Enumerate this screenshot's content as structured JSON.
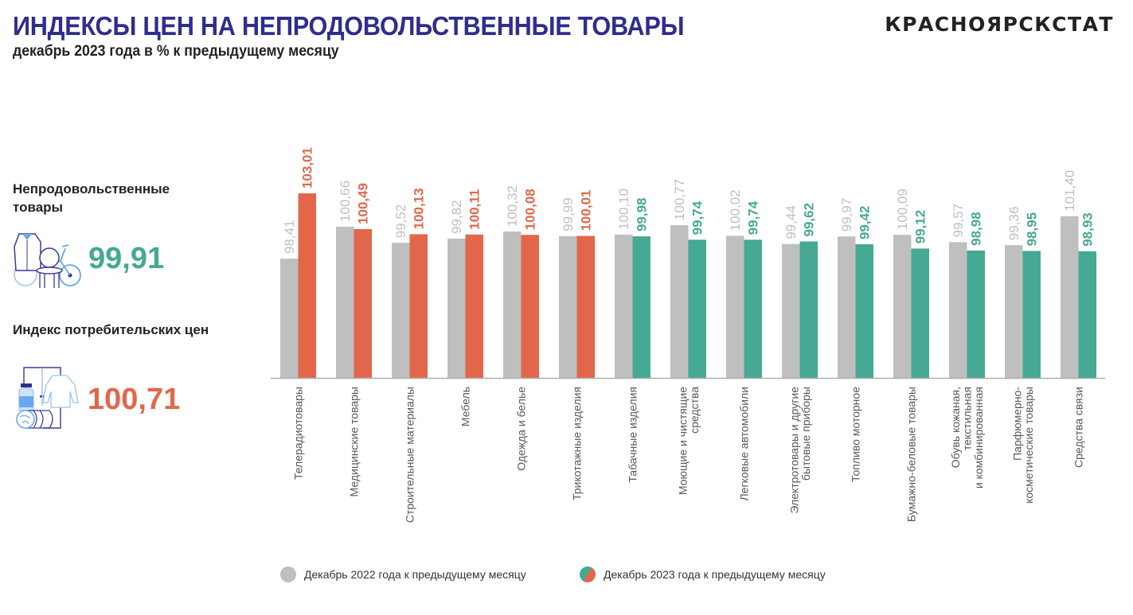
{
  "header": {
    "title": "ИНДЕКСЫ ЦЕН НА НЕПРОДОВОЛЬСТВЕННЫЕ ТОВАРЫ",
    "subtitle": "декабрь 2023 года в % к предыдущему месяцу",
    "brand": "КРАСНОЯРСКСТАТ"
  },
  "summary": [
    {
      "label": "Непродовольственные товары",
      "value": "99,91",
      "color": "#45a993",
      "icon": "goods-icon"
    },
    {
      "label": "Индекс потребительских цен",
      "value": "100,71",
      "color": "#e2674a",
      "icon": "consumer-basket-icon"
    }
  ],
  "colors": {
    "prev_year": "#bfbfbf",
    "above_100": "#e2674a",
    "below_100": "#45a993",
    "axis": "#b0b0b0",
    "category_text": "#595959"
  },
  "chart_data": {
    "type": "bar",
    "title": "ИНДЕКСЫ ЦЕН НА НЕПРОДОВОЛЬСТВЕННЫЕ ТОВАРЫ",
    "subtitle": "декабрь 2023 года в % к предыдущему месяцу",
    "xlabel": "",
    "ylabel": "",
    "ylim": [
      90,
      104
    ],
    "grid": false,
    "legend_position": "bottom",
    "categories": [
      [
        "Телерадиотовары"
      ],
      [
        "Медицинские товары"
      ],
      [
        "Строительные материалы"
      ],
      [
        "Мебель"
      ],
      [
        "Одежда и белье"
      ],
      [
        "Трикотажные изделия"
      ],
      [
        "Табачные изделия"
      ],
      [
        "Моющие и чистящие",
        "средства"
      ],
      [
        "Легковые автомобили"
      ],
      [
        "Электротовары и другие",
        "бытовые приборы"
      ],
      [
        "Топливо моторное"
      ],
      [
        "Бумажно-беловые товары"
      ],
      [
        "Обувь кожаная,",
        "текстильная",
        "и комбинированная"
      ],
      [
        "Парфюмерно-",
        "косметические товары"
      ],
      [
        "Средства связи"
      ]
    ],
    "series": [
      {
        "name": "Декабрь 2022 года к предыдущему месяцу",
        "values": [
          98.41,
          100.66,
          99.52,
          99.82,
          100.32,
          99.99,
          100.1,
          100.77,
          100.02,
          99.44,
          99.97,
          100.09,
          99.57,
          99.36,
          101.4
        ],
        "labels": [
          "98,41",
          "100,66",
          "99,52",
          "99,82",
          "100,32",
          "99,99",
          "100,10",
          "100,77",
          "100,02",
          "99,44",
          "99,97",
          "100,09",
          "99,57",
          "99,36",
          "101,40"
        ]
      },
      {
        "name": "Декабрь 2023 года к предыдущему месяцу",
        "values": [
          103.01,
          100.49,
          100.13,
          100.11,
          100.08,
          100.01,
          99.98,
          99.74,
          99.74,
          99.62,
          99.42,
          99.12,
          98.98,
          98.95,
          98.93
        ],
        "labels": [
          "103,01",
          "100,49",
          "100,13",
          "100,11",
          "100,08",
          "100,01",
          "99,98",
          "99,74",
          "99,74",
          "99,62",
          "99,42",
          "99,12",
          "98,98",
          "98,95",
          "98,93"
        ]
      }
    ]
  }
}
